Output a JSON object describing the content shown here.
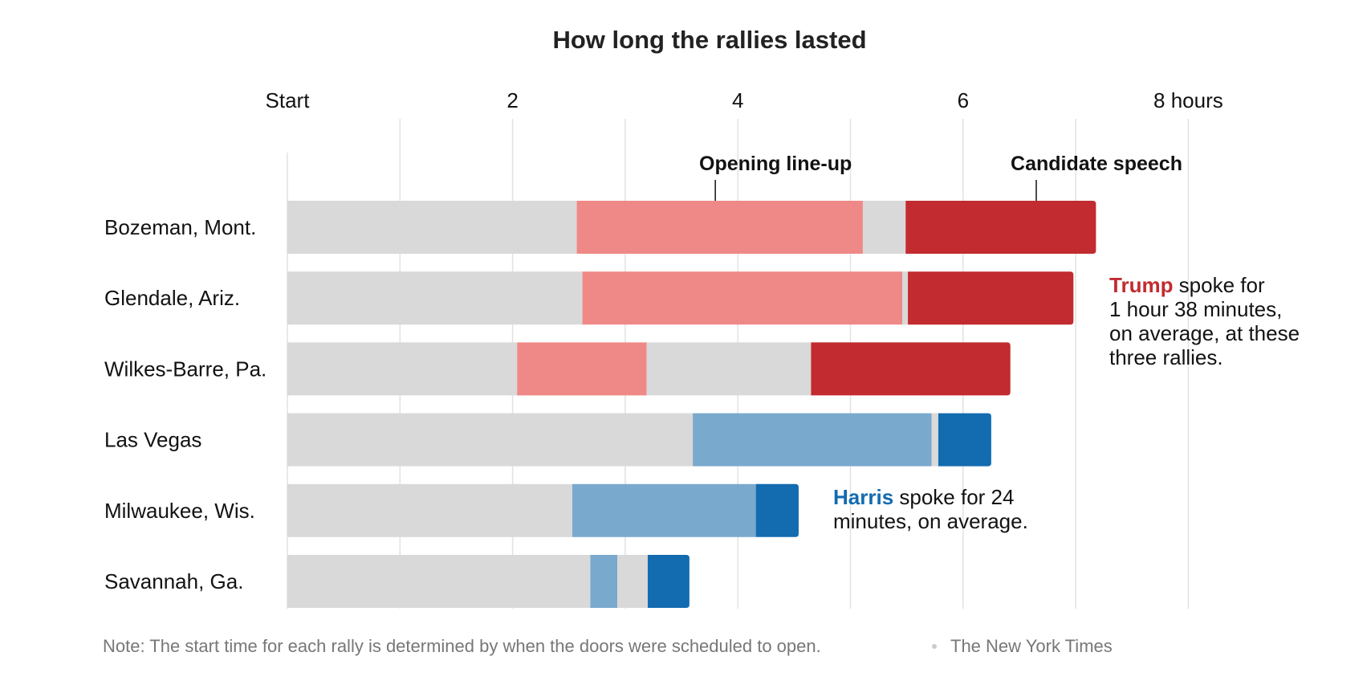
{
  "chart_data": {
    "type": "bar",
    "title": "How long the rallies lasted",
    "x_unit": "hours",
    "xlim": [
      0,
      9
    ],
    "x_ticks": [
      {
        "value": 0,
        "label": "Start"
      },
      {
        "value": 2,
        "label": "2"
      },
      {
        "value": 4,
        "label": "4"
      },
      {
        "value": 6,
        "label": "6"
      },
      {
        "value": 8,
        "label": "8 hours"
      }
    ],
    "grid": true,
    "phase_labels": [
      {
        "label": "Opening line-up",
        "x": 3.8
      },
      {
        "label": "Candidate speech",
        "x": 6.65
      }
    ],
    "rows": [
      {
        "name": "Bozeman, Mont.",
        "party": "trump",
        "segments": [
          {
            "phase": "wait",
            "start": 0,
            "end": 2.57
          },
          {
            "phase": "opening",
            "start": 2.57,
            "end": 5.11
          },
          {
            "phase": "wait",
            "start": 5.11,
            "end": 5.49
          },
          {
            "phase": "speech",
            "start": 5.49,
            "end": 7.18
          }
        ]
      },
      {
        "name": "Glendale, Ariz.",
        "party": "trump",
        "segments": [
          {
            "phase": "wait",
            "start": 0,
            "end": 2.62
          },
          {
            "phase": "opening",
            "start": 2.62,
            "end": 5.46
          },
          {
            "phase": "wait",
            "start": 5.46,
            "end": 5.51
          },
          {
            "phase": "speech",
            "start": 5.51,
            "end": 6.98
          }
        ]
      },
      {
        "name": "Wilkes-Barre, Pa.",
        "party": "trump",
        "segments": [
          {
            "phase": "wait",
            "start": 0,
            "end": 2.04
          },
          {
            "phase": "opening",
            "start": 2.04,
            "end": 3.19
          },
          {
            "phase": "wait",
            "start": 3.19,
            "end": 4.65
          },
          {
            "phase": "speech",
            "start": 4.65,
            "end": 6.42
          }
        ]
      },
      {
        "name": "Las Vegas",
        "party": "harris",
        "segments": [
          {
            "phase": "wait",
            "start": 0,
            "end": 3.6
          },
          {
            "phase": "opening",
            "start": 3.6,
            "end": 5.72
          },
          {
            "phase": "wait",
            "start": 5.72,
            "end": 5.78
          },
          {
            "phase": "speech",
            "start": 5.78,
            "end": 6.25
          }
        ]
      },
      {
        "name": "Milwaukee, Wis.",
        "party": "harris",
        "segments": [
          {
            "phase": "wait",
            "start": 0,
            "end": 2.53
          },
          {
            "phase": "opening",
            "start": 2.53,
            "end": 4.16
          },
          {
            "phase": "speech",
            "start": 4.16,
            "end": 4.54
          }
        ]
      },
      {
        "name": "Savannah, Ga.",
        "party": "harris",
        "segments": [
          {
            "phase": "wait",
            "start": 0,
            "end": 2.69
          },
          {
            "phase": "opening",
            "start": 2.69,
            "end": 2.93
          },
          {
            "phase": "wait",
            "start": 2.93,
            "end": 3.2
          },
          {
            "phase": "speech",
            "start": 3.2,
            "end": 3.57
          }
        ]
      }
    ],
    "colors": {
      "wait": "#d9d9d9",
      "trump_opening": "#ef8987",
      "trump_speech": "#c22b2f",
      "harris_opening": "#7aa9ce",
      "harris_speech": "#136bb0"
    },
    "annotations": [
      {
        "id": "trump",
        "highlight": "Trump",
        "highlight_color": "#c22b2f",
        "lines": [
          " spoke for",
          "1 hour 38 minutes,",
          "on average, at these",
          "three rallies."
        ]
      },
      {
        "id": "harris",
        "highlight": "Harris",
        "highlight_color": "#136bb0",
        "lines": [
          " spoke for 24",
          "minutes, on average."
        ]
      }
    ],
    "note": "Note: The start time for each rally is determined by when the doors were scheduled to open.",
    "source": "The New York Times"
  }
}
